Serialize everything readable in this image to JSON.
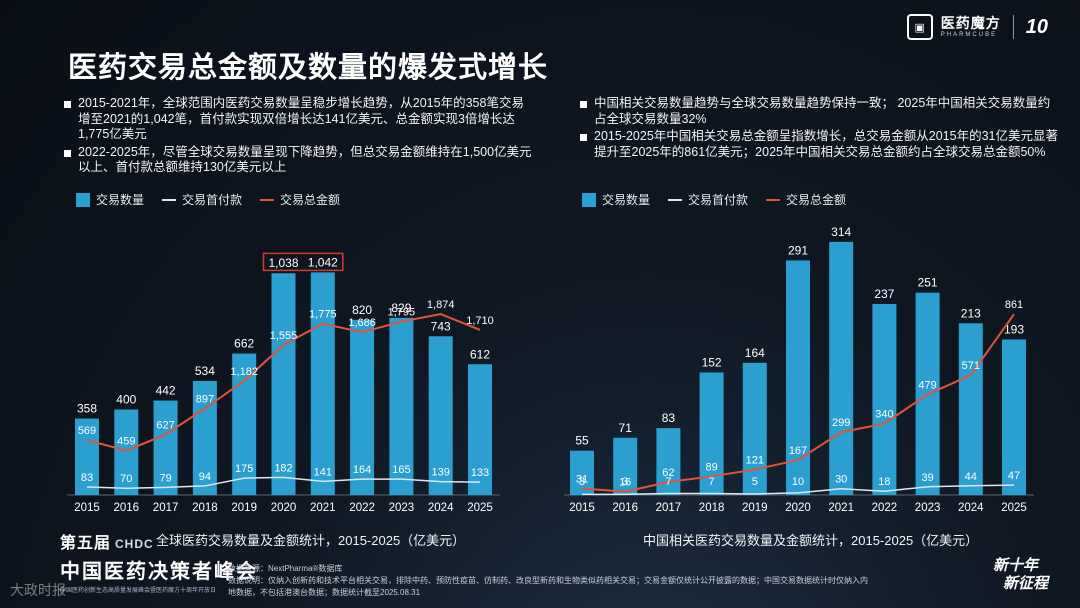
{
  "header": {
    "brand_name": "医药魔方",
    "brand_sub": "PHARMCUBE",
    "brand_anniversary": "10"
  },
  "title": "医药交易总金额及数量的爆发式增长",
  "bullets_left": [
    "2015-2021年，全球范围内医药交易数量呈稳步增长趋势，从2015年的358笔交易增至2021的1,042笔，首付款实现双倍增长达141亿美元、总金额实现3倍增长达1,775亿美元",
    "2022-2025年，尽管全球交易数量呈现下降趋势，但总交易金额维持在1,500亿美元以上、首付款总额维持130亿美元以上"
  ],
  "bullets_right": [
    "中国相关交易数量趋势与全球交易数量趋势保持一致； 2025年中国相关交易数量约占全球交易数量32%",
    "2015-2025年中国相关交易总金额呈指数增长，总交易金额从2015年的31亿美元显著提升至2025年的861亿美元；2025年中国相关交易总金额约占全球交易总金额50%"
  ],
  "legend": {
    "count": "交易数量",
    "upfront": "交易首付款",
    "total": "交易总金额"
  },
  "colors": {
    "bar": "#2a9fd0",
    "total_line": "#e0553a",
    "upfront_line": "#dde8f2",
    "highlight_box": "#d63a2e"
  },
  "chart_data": [
    {
      "type": "bar",
      "title": "全球医药交易数量及金额统计，2015-2025（亿美元）",
      "categories": [
        "2015",
        "2016",
        "2017",
        "2018",
        "2019",
        "2020",
        "2021",
        "2022",
        "2023",
        "2024",
        "2025"
      ],
      "series": [
        {
          "name": "交易数量",
          "kind": "bar",
          "values": [
            358,
            400,
            442,
            534,
            662,
            1038,
            1042,
            820,
            829,
            743,
            612
          ]
        },
        {
          "name": "交易首付款",
          "kind": "line",
          "values": [
            83,
            70,
            79,
            94,
            175,
            182,
            141,
            164,
            165,
            139,
            133
          ]
        },
        {
          "name": "交易总金额",
          "kind": "line",
          "values": [
            569,
            459,
            627,
            897,
            1182,
            1555,
            1775,
            1686,
            1795,
            1874,
            1710
          ]
        }
      ],
      "bar_labels": [
        "358",
        "400",
        "442",
        "534",
        "662",
        "1,038",
        "1,042",
        "820",
        "829",
        "743",
        "612"
      ],
      "total_labels": [
        "569",
        "459",
        "627",
        "897",
        "1,182",
        "1,555",
        "1,775",
        "1,686",
        "1,795",
        "1,874",
        "1,710"
      ],
      "upfront_labels": [
        "83",
        "70",
        "79",
        "94",
        "175",
        "182",
        "141",
        "164",
        "165",
        "139",
        "133"
      ],
      "highlighted": [
        "2020",
        "2021"
      ],
      "bar_ylim": [
        0,
        1100
      ],
      "line_ylim": [
        0,
        2900
      ]
    },
    {
      "type": "bar",
      "title": "中国相关医药交易数量及金额统计，2015-2025（亿美元）",
      "categories": [
        "2015",
        "2016",
        "2017",
        "2018",
        "2019",
        "2020",
        "2021",
        "2022",
        "2023",
        "2024",
        "2025"
      ],
      "series": [
        {
          "name": "交易数量",
          "kind": "bar",
          "values": [
            55,
            71,
            83,
            152,
            164,
            291,
            314,
            237,
            251,
            213,
            193
          ]
        },
        {
          "name": "交易首付款",
          "kind": "line",
          "values": [
            3,
            3,
            7,
            7,
            5,
            10,
            30,
            18,
            39,
            44,
            47
          ]
        },
        {
          "name": "交易总金额",
          "kind": "line",
          "values": [
            31,
            16,
            62,
            89,
            121,
            167,
            299,
            340,
            479,
            571,
            861
          ]
        }
      ],
      "bar_labels": [
        "55",
        "71",
        "83",
        "152",
        "164",
        "291",
        "314",
        "237",
        "251",
        "213",
        "193"
      ],
      "total_labels": [
        "31",
        "16",
        "62",
        "89",
        "121",
        "167",
        "299",
        "340",
        "479",
        "571",
        "861"
      ],
      "upfront_labels": [
        "3",
        "3",
        "7",
        "7",
        "5",
        "10",
        "30",
        "18",
        "39",
        "44",
        "47"
      ],
      "bar_ylim": [
        0,
        330
      ],
      "line_ylim": [
        0,
        1500
      ]
    }
  ],
  "footer": {
    "edition": "第五届",
    "edition_badge": "CHDC",
    "summit": "中国医药决策者峰会",
    "summit_sub": "中国医药创新生态高质量发展峰会暨医药魔方十周年开放日",
    "source": "数据来源：NextPharma®数据库",
    "note1": "数据说明：仅纳入创新药和技术平台相关交易，排除中药、预防性疫苗、仿制药、改良型新药和生物类似药相关交易；交易金额仅统计公开披露的数据；中国交易数据统计时仅纳入内",
    "note2": "地数据，不包括港澳台数据；数据统计截至2025.08.31",
    "slogan1": "新十年",
    "slogan2": "新征程",
    "channel": "大政时报"
  }
}
